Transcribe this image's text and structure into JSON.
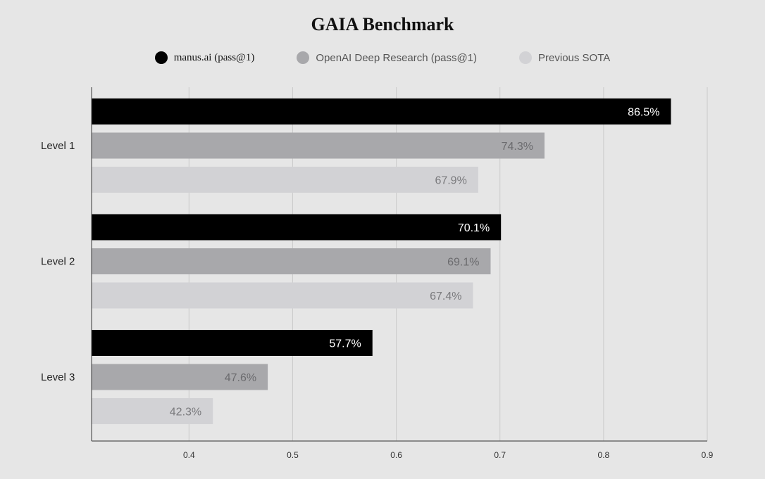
{
  "chart_data": {
    "type": "bar",
    "orientation": "horizontal",
    "title": "GAIA Benchmark",
    "categories": [
      "Level 1",
      "Level 2",
      "Level 3"
    ],
    "series": [
      {
        "name": "manus.ai (pass@1)",
        "values": [
          0.865,
          0.701,
          0.577
        ],
        "labels": [
          "86.5%",
          "70.1%",
          "57.7%"
        ],
        "color": "#000000",
        "label_color": "#ffffff"
      },
      {
        "name": "OpenAI Deep Research (pass@1)",
        "values": [
          0.743,
          0.691,
          0.476
        ],
        "labels": [
          "74.3%",
          "69.1%",
          "47.6%"
        ],
        "color": "#a8a8ab",
        "label_color": "#6b6b6e"
      },
      {
        "name": "Previous SOTA",
        "values": [
          0.679,
          0.674,
          0.423
        ],
        "labels": [
          "67.9%",
          "67.4%",
          "42.3%"
        ],
        "color": "#d2d2d5",
        "label_color": "#7a7a7d"
      }
    ],
    "xlim": [
      0.306,
      0.9
    ],
    "xticks": [
      0.4,
      0.5,
      0.6,
      0.7,
      0.8,
      0.9
    ],
    "xtick_labels": [
      "0.4",
      "0.5",
      "0.6",
      "0.7",
      "0.8",
      "0.9"
    ],
    "grid": true,
    "legend_position": "top"
  }
}
